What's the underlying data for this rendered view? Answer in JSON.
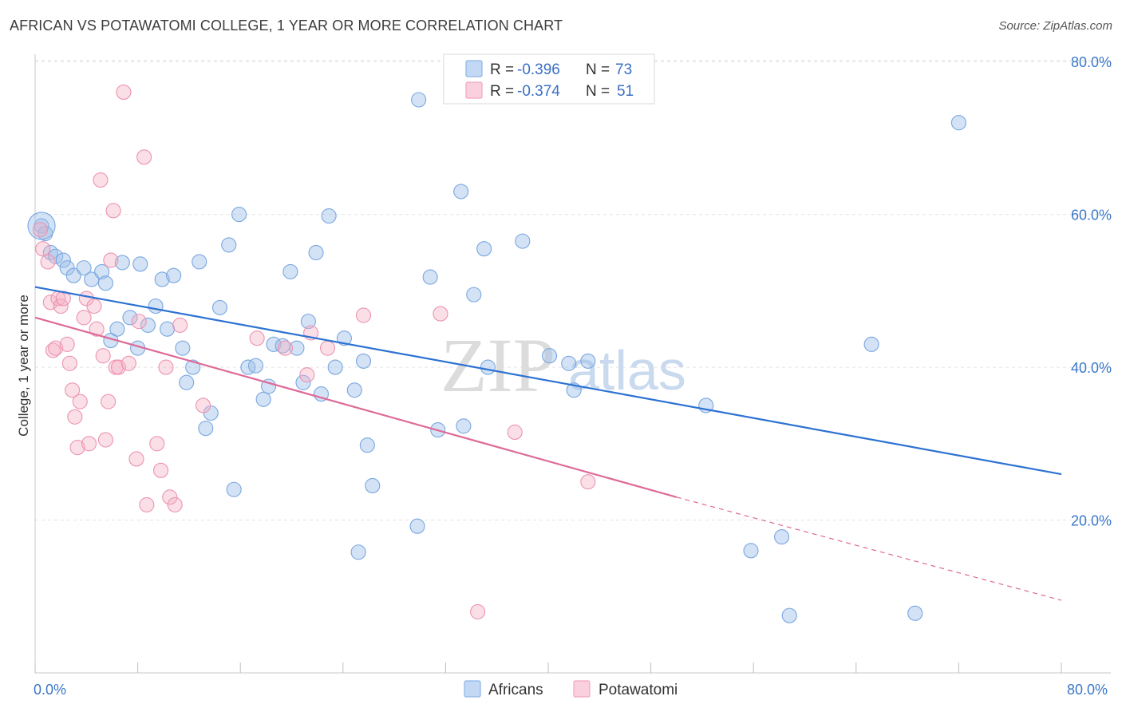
{
  "title": "AFRICAN VS POTAWATOMI COLLEGE, 1 YEAR OR MORE CORRELATION CHART",
  "source": "Source: ZipAtlas.com",
  "watermark": {
    "zip": "ZIP",
    "atlas": "atlas"
  },
  "chart_data": {
    "type": "scatter",
    "title": "AFRICAN VS POTAWATOMI COLLEGE, 1 YEAR OR MORE CORRELATION CHART",
    "xlabel": "",
    "ylabel": "College, 1 year or more",
    "xlim": [
      0,
      80
    ],
    "ylim": [
      0,
      82
    ],
    "x_tick_labels": [
      "0.0%",
      "80.0%"
    ],
    "y_ticks": [
      20,
      40,
      60,
      80
    ],
    "y_tick_labels": [
      "20.0%",
      "40.0%",
      "60.0%",
      "80.0%"
    ],
    "grid": true,
    "legend": [
      {
        "name": "Africans",
        "r_label": "R =",
        "r": "-0.396",
        "n_label": "N =",
        "n": "73",
        "color": "#9dbfe8",
        "line_color": "#2d72d2"
      },
      {
        "name": "Potawatomi",
        "r_label": "R =",
        "r": "-0.374",
        "n_label": "N =",
        "n": "51",
        "color": "#f4aec4",
        "line_color": "#de6a98"
      }
    ],
    "series": [
      {
        "name": "Africans",
        "trend": {
          "x0": 0,
          "y0": 50.5,
          "x1": 80,
          "y1": 26.0
        },
        "points": [
          [
            0.5,
            58.5
          ],
          [
            0.8,
            57.5
          ],
          [
            1.2,
            55.0
          ],
          [
            1.6,
            54.5
          ],
          [
            2.2,
            54.0
          ],
          [
            2.5,
            53.0
          ],
          [
            3.0,
            52.0
          ],
          [
            3.8,
            53.0
          ],
          [
            4.4,
            51.5
          ],
          [
            5.2,
            52.5
          ],
          [
            5.5,
            51.0
          ],
          [
            5.9,
            43.5
          ],
          [
            6.4,
            45.0
          ],
          [
            6.8,
            53.7
          ],
          [
            7.4,
            46.5
          ],
          [
            8.0,
            42.5
          ],
          [
            8.2,
            53.5
          ],
          [
            8.8,
            45.5
          ],
          [
            9.4,
            48.0
          ],
          [
            9.9,
            51.5
          ],
          [
            10.3,
            45.0
          ],
          [
            10.8,
            52.0
          ],
          [
            11.5,
            42.5
          ],
          [
            11.8,
            38.0
          ],
          [
            12.3,
            40.0
          ],
          [
            12.8,
            53.8
          ],
          [
            13.3,
            32.0
          ],
          [
            13.7,
            34.0
          ],
          [
            14.4,
            47.8
          ],
          [
            15.1,
            56.0
          ],
          [
            15.5,
            24.0
          ],
          [
            15.9,
            60.0
          ],
          [
            16.6,
            40.0
          ],
          [
            17.2,
            40.2
          ],
          [
            17.8,
            35.8
          ],
          [
            18.2,
            37.5
          ],
          [
            18.6,
            43.0
          ],
          [
            19.3,
            42.8
          ],
          [
            19.9,
            52.5
          ],
          [
            20.4,
            42.5
          ],
          [
            20.9,
            38.0
          ],
          [
            21.3,
            46.0
          ],
          [
            21.9,
            55.0
          ],
          [
            22.3,
            36.5
          ],
          [
            22.9,
            59.8
          ],
          [
            23.4,
            40.0
          ],
          [
            24.1,
            43.8
          ],
          [
            24.9,
            37.0
          ],
          [
            25.2,
            15.8
          ],
          [
            25.6,
            40.8
          ],
          [
            25.9,
            29.8
          ],
          [
            26.3,
            24.5
          ],
          [
            29.8,
            19.2
          ],
          [
            29.9,
            75.0
          ],
          [
            30.8,
            51.8
          ],
          [
            31.4,
            31.8
          ],
          [
            33.2,
            63.0
          ],
          [
            33.4,
            32.3
          ],
          [
            34.2,
            49.5
          ],
          [
            35.0,
            55.5
          ],
          [
            35.3,
            40.0
          ],
          [
            38.0,
            56.5
          ],
          [
            40.1,
            41.5
          ],
          [
            41.6,
            40.5
          ],
          [
            42.0,
            37.0
          ],
          [
            43.1,
            40.8
          ],
          [
            52.3,
            35.0
          ],
          [
            55.8,
            16.0
          ],
          [
            58.2,
            17.8
          ],
          [
            58.8,
            7.5
          ],
          [
            65.2,
            43.0
          ],
          [
            68.6,
            7.8
          ],
          [
            72.0,
            72.0
          ]
        ],
        "big_point": [
          0.5,
          58.5
        ]
      },
      {
        "name": "Potawatomi",
        "trend": {
          "x0": 0,
          "y0": 46.5,
          "x1": 50,
          "y1": 23.0,
          "dash_to": {
            "x": 80,
            "y": 9.5
          }
        },
        "points": [
          [
            0.4,
            58.0
          ],
          [
            0.6,
            55.5
          ],
          [
            1.0,
            53.8
          ],
          [
            1.2,
            48.5
          ],
          [
            1.4,
            42.2
          ],
          [
            1.6,
            42.5
          ],
          [
            1.8,
            49.0
          ],
          [
            2.0,
            48.0
          ],
          [
            2.2,
            49.0
          ],
          [
            2.5,
            43.0
          ],
          [
            2.7,
            40.5
          ],
          [
            2.9,
            37.0
          ],
          [
            3.1,
            33.5
          ],
          [
            3.3,
            29.5
          ],
          [
            3.5,
            35.5
          ],
          [
            3.8,
            46.5
          ],
          [
            4.0,
            49.0
          ],
          [
            4.2,
            30.0
          ],
          [
            4.6,
            48.0
          ],
          [
            4.8,
            45.0
          ],
          [
            5.1,
            64.5
          ],
          [
            5.3,
            41.5
          ],
          [
            5.5,
            30.5
          ],
          [
            5.7,
            35.5
          ],
          [
            5.9,
            54.0
          ],
          [
            6.1,
            60.5
          ],
          [
            6.3,
            40.0
          ],
          [
            6.5,
            40.0
          ],
          [
            6.9,
            76.0
          ],
          [
            7.3,
            40.5
          ],
          [
            7.9,
            28.0
          ],
          [
            8.1,
            46.0
          ],
          [
            8.5,
            67.5
          ],
          [
            8.7,
            22.0
          ],
          [
            9.5,
            30.0
          ],
          [
            9.8,
            26.5
          ],
          [
            10.2,
            40.0
          ],
          [
            10.5,
            23.0
          ],
          [
            10.9,
            22.0
          ],
          [
            11.3,
            45.5
          ],
          [
            13.1,
            35.0
          ],
          [
            17.3,
            43.8
          ],
          [
            19.5,
            42.5
          ],
          [
            21.2,
            39.0
          ],
          [
            21.5,
            44.5
          ],
          [
            22.8,
            42.5
          ],
          [
            25.6,
            46.8
          ],
          [
            31.6,
            47.0
          ],
          [
            34.5,
            8.0
          ],
          [
            37.4,
            31.5
          ],
          [
            43.1,
            25.0
          ]
        ]
      }
    ]
  },
  "bottom_legend": [
    {
      "label": "Africans"
    },
    {
      "label": "Potawatomi"
    }
  ]
}
